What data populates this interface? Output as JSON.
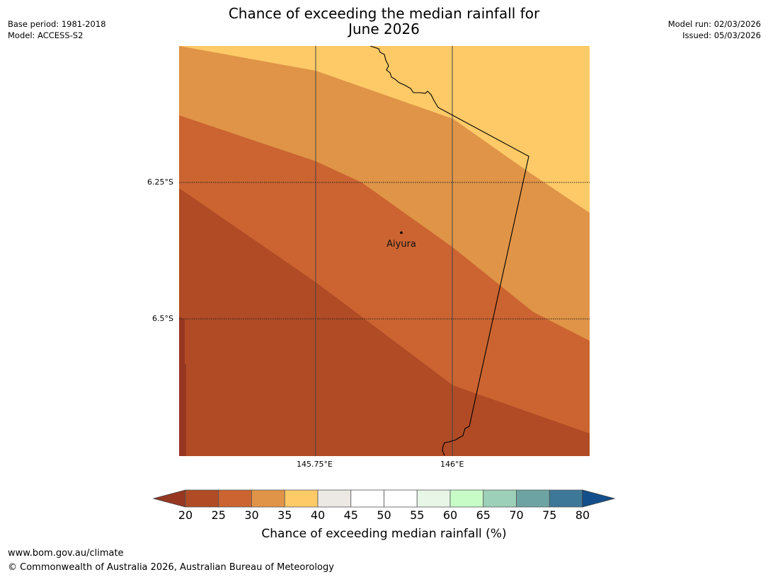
{
  "title_line1": "Chance of exceeding the median rainfall for",
  "title_line2": "June 2026",
  "meta_left": [
    "Base period: 1981-2018",
    "Model: ACCESS-S2"
  ],
  "meta_right": [
    "Model run: 02/03/2026",
    "Issued: 05/03/2026"
  ],
  "map": {
    "place_label": "Aiyura",
    "lat_labels": [
      "6.25°S",
      "6.5°S"
    ],
    "lon_labels": [
      "145.75°E",
      "146°E"
    ],
    "zone_colors": {
      "band_20_25": "#b04b25",
      "band_25_30": "#cb6431",
      "band_30_35": "#e09447",
      "band_35_40": "#fdca67",
      "below_20": "#973722"
    }
  },
  "colorbar": {
    "ticks": [
      "20",
      "25",
      "30",
      "35",
      "40",
      "45",
      "50",
      "55",
      "60",
      "65",
      "70",
      "75",
      "80"
    ],
    "colors": [
      "#b04b25",
      "#cb6431",
      "#e09447",
      "#fdca67",
      "#ece8e4",
      "#ffffff",
      "#ffffff",
      "#e8f6e8",
      "#c7fcc7",
      "#9cd0b8",
      "#6ea3a3",
      "#3d7898"
    ],
    "under_color": "#973722",
    "over_color": "#13508b",
    "label": "Chance of exceeding median rainfall (%)"
  },
  "footer": {
    "url": "www.bom.gov.au/climate",
    "copyright": "© Commonwealth of Australia 2026, Australian Bureau of Meteorology"
  }
}
